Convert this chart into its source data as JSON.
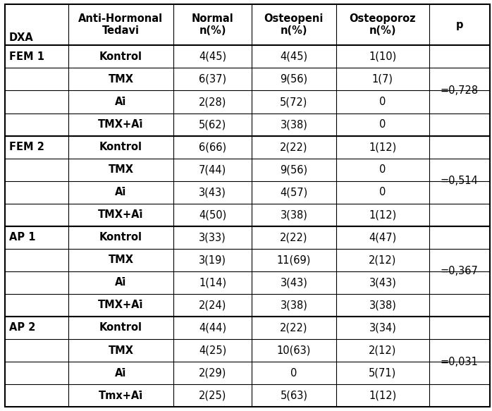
{
  "col_headers": [
    "DXA",
    "Anti-Hormonal\nTedavi",
    "Normal\nn(%)",
    "Osteopeni\nn(%)",
    "Osteoporoz\nn(%)",
    "p"
  ],
  "rows": [
    {
      "dxa": "FEM 1",
      "tedavi": "Kontrol",
      "normal": "4(45)",
      "osteopeni": "4(45)",
      "osteoporoz": "1(10)",
      "p": "=0,728"
    },
    {
      "dxa": "",
      "tedavi": "TMX",
      "normal": "6(37)",
      "osteopeni": "9(56)",
      "osteoporoz": "1(7)",
      "p": ""
    },
    {
      "dxa": "",
      "tedavi": "Ai̇",
      "normal": "2(28)",
      "osteopeni": "5(72)",
      "osteoporoz": "0",
      "p": ""
    },
    {
      "dxa": "",
      "tedavi": "TMX+Ai̇",
      "normal": "5(62)",
      "osteopeni": "3(38)",
      "osteoporoz": "0",
      "p": ""
    },
    {
      "dxa": "FEM 2",
      "tedavi": "Kontrol",
      "normal": "6(66)",
      "osteopeni": "2(22)",
      "osteoporoz": "1(12)",
      "p": "=0,514"
    },
    {
      "dxa": "",
      "tedavi": "TMX",
      "normal": "7(44)",
      "osteopeni": "9(56)",
      "osteoporoz": "0",
      "p": ""
    },
    {
      "dxa": "",
      "tedavi": "Ai̇",
      "normal": "3(43)",
      "osteopeni": "4(57)",
      "osteoporoz": "0",
      "p": ""
    },
    {
      "dxa": "",
      "tedavi": "TMX+Ai̇",
      "normal": "4(50)",
      "osteopeni": "3(38)",
      "osteoporoz": "1(12)",
      "p": ""
    },
    {
      "dxa": "AP 1",
      "tedavi": "Kontrol",
      "normal": "3(33)",
      "osteopeni": "2(22)",
      "osteoporoz": "4(47)",
      "p": "=0,367"
    },
    {
      "dxa": "",
      "tedavi": "TMX",
      "normal": "3(19)",
      "osteopeni": "11(69)",
      "osteoporoz": "2(12)",
      "p": ""
    },
    {
      "dxa": "",
      "tedavi": "Ai̇",
      "normal": "1(14)",
      "osteopeni": "3(43)",
      "osteoporoz": "3(43)",
      "p": ""
    },
    {
      "dxa": "",
      "tedavi": "TMX+Ai̇",
      "normal": "2(24)",
      "osteopeni": "3(38)",
      "osteoporoz": "3(38)",
      "p": ""
    },
    {
      "dxa": "AP 2",
      "tedavi": "Kontrol",
      "normal": "4(44)",
      "osteopeni": "2(22)",
      "osteoporoz": "3(34)",
      "p": "=0,031"
    },
    {
      "dxa": "",
      "tedavi": "TMX",
      "normal": "4(25)",
      "osteopeni": "10(63)",
      "osteoporoz": "2(12)",
      "p": ""
    },
    {
      "dxa": "",
      "tedavi": "Ai̇",
      "normal": "2(29)",
      "osteopeni": "0",
      "osteoporoz": "5(71)",
      "p": ""
    },
    {
      "dxa": "",
      "tedavi": "Tmx+Ai̇",
      "normal": "2(25)",
      "osteopeni": "5(63)",
      "osteoporoz": "1(12)",
      "p": ""
    }
  ],
  "group_rows": [
    0,
    4,
    8,
    12
  ],
  "bg_color": "#ffffff",
  "border_color": "#000000",
  "header_font_size": 10.5,
  "cell_font_size": 10.5,
  "bold_font": "bold"
}
